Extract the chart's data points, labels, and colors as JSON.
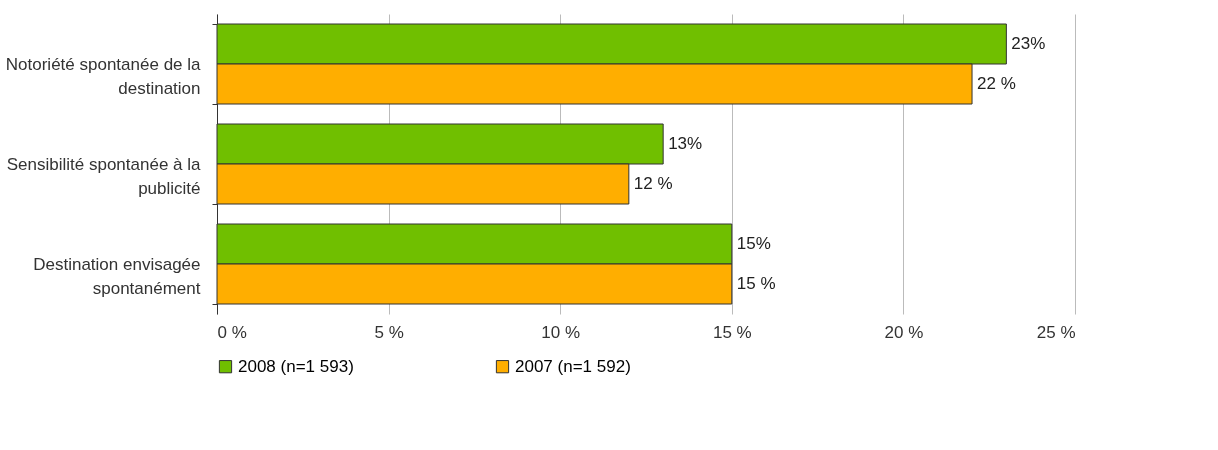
{
  "chart_data": {
    "type": "bar",
    "orientation": "horizontal",
    "categories": [
      "Notoriété spontanée de la destination",
      "Sensibilité spontanée à la publicité",
      "Destination envisagée spontanément"
    ],
    "series": [
      {
        "name": "2008 (n=1 593)",
        "color": "#70bf00",
        "values": [
          23,
          13,
          15
        ],
        "value_labels": [
          "23%",
          "13%",
          "15%"
        ]
      },
      {
        "name": "2007 (n=1 592)",
        "color": "#ffae00",
        "values": [
          22,
          12,
          15
        ],
        "value_labels": [
          "22 %",
          "12 %",
          "15 %"
        ]
      }
    ],
    "xlim": [
      0,
      25
    ],
    "xticks": [
      {
        "value": 0,
        "label": "0 %"
      },
      {
        "value": 5,
        "label": "5 %"
      },
      {
        "value": 10,
        "label": "10 %"
      },
      {
        "value": 15,
        "label": "15 %"
      },
      {
        "value": 20,
        "label": "20 %"
      },
      {
        "value": 25,
        "label": "25 %"
      }
    ],
    "grid": "x",
    "legend": "bottom"
  }
}
